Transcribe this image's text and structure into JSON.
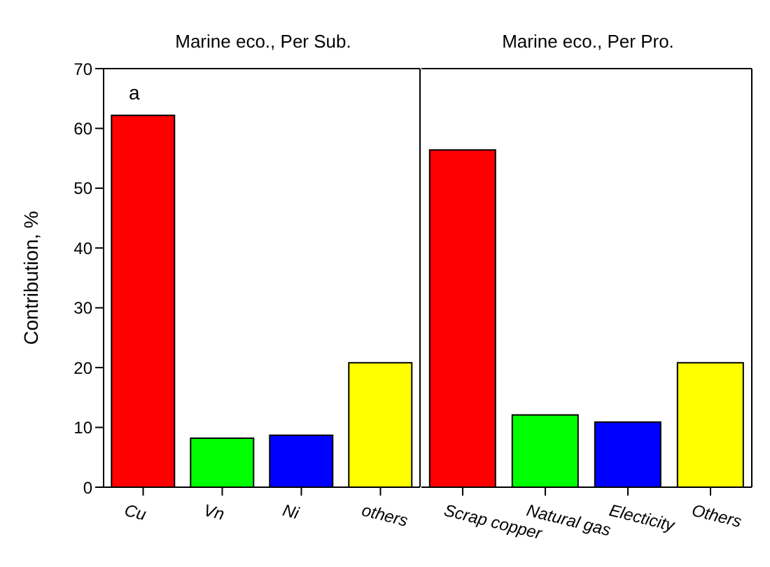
{
  "chart_data": [
    {
      "type": "bar",
      "title": "Marine eco., Per Sub.",
      "ylabel": "Contribution, %",
      "categories": [
        "Cu",
        "Vn",
        "Ni",
        "others"
      ],
      "values": [
        62.2,
        8.2,
        8.7,
        20.8
      ],
      "colors": [
        "#ff0000",
        "#00ff00",
        "#0000ff",
        "#ffff00"
      ],
      "ylim": [
        0,
        70
      ],
      "yticks": [
        0,
        10,
        20,
        30,
        40,
        50,
        60,
        70
      ],
      "grid": false,
      "legend": false,
      "annotations": [
        "a"
      ]
    },
    {
      "type": "bar",
      "title": "Marine eco., Per Pro.",
      "categories": [
        "Scrap copper",
        "Natural gas",
        "Electicity",
        "Others"
      ],
      "values": [
        56.4,
        12.1,
        10.9,
        20.8
      ],
      "colors": [
        "#ff0000",
        "#00ff00",
        "#0000ff",
        "#ffff00"
      ],
      "ylim": [
        0,
        70
      ],
      "yticks": [
        0,
        10,
        20,
        30,
        40,
        50,
        60,
        70
      ],
      "tick_labels": "x",
      "grid": false,
      "legend": false
    }
  ]
}
